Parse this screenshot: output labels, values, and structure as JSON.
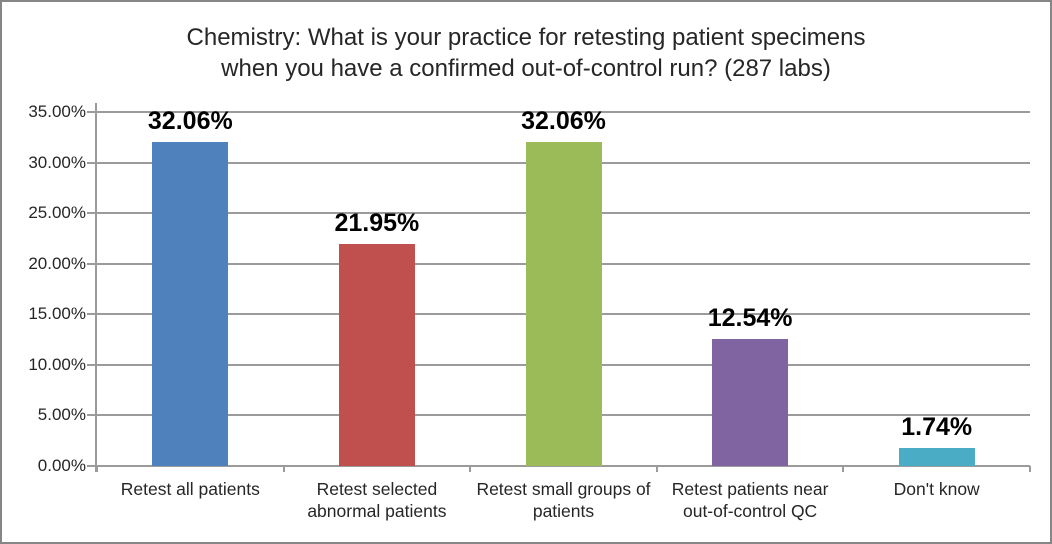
{
  "window": {
    "background_color": "#ffffff",
    "border_color": "#868686"
  },
  "chart_data": {
    "type": "bar",
    "title": "Chemistry: What is your practice for retesting patient specimens\nwhen you have a confirmed out-of-control run? (287 labs)",
    "categories": [
      "Retest all patients",
      "Retest selected abnormal patients",
      "Retest small groups of patients",
      "Retest patients near out-of-control QC",
      "Don't know"
    ],
    "values": [
      32.06,
      21.95,
      32.06,
      12.54,
      1.74
    ],
    "data_labels": [
      "32.06%",
      "21.95%",
      "32.06%",
      "12.54%",
      "1.74%"
    ],
    "bar_colors": [
      "#4F81BD",
      "#C0504D",
      "#9BBB59",
      "#8064A2",
      "#4BACC6"
    ],
    "xlabel": "",
    "ylabel": "",
    "ylim": [
      0,
      35
    ],
    "ytick_step": 5,
    "ytick_labels": [
      "0.00%",
      "5.00%",
      "10.00%",
      "15.00%",
      "20.00%",
      "25.00%",
      "30.00%",
      "35.00%"
    ],
    "grid": true,
    "gridline_color": "#9B9B9B",
    "axis_line_color": "#9B9B9B",
    "label_text_color": "#262626",
    "data_label_color": "#000000",
    "legend_position": "none"
  }
}
